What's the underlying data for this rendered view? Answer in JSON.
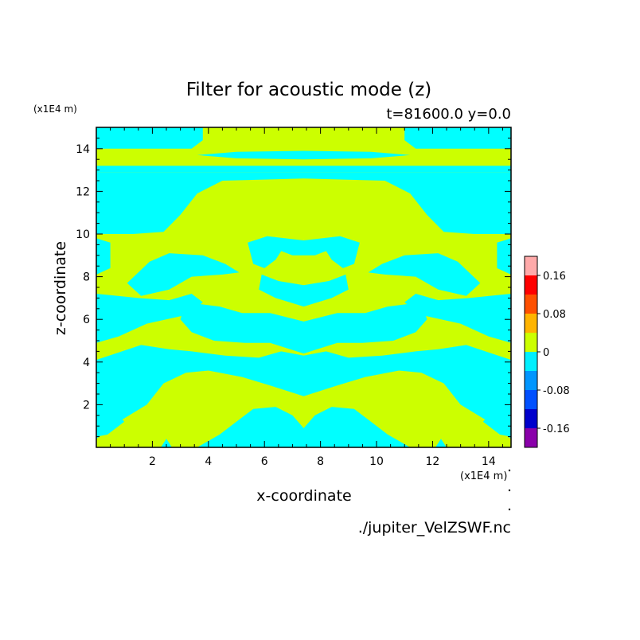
{
  "chart_data": {
    "type": "heatmap",
    "title": "Filter for acoustic mode (z)",
    "subtitle": "t=81600.0 y=0.0",
    "xlabel": "x-coordinate",
    "ylabel": "z-coordinate",
    "x_unit": "(x1E4 m)",
    "y_unit": "(x1E4 m)",
    "xlim": [
      0,
      14.8
    ],
    "ylim": [
      0,
      15
    ],
    "x_ticks": [
      2,
      4,
      6,
      8,
      10,
      12,
      14
    ],
    "y_ticks": [
      2,
      4,
      6,
      8,
      10,
      12,
      14
    ],
    "source_file": "./jupiter_VelZSWF.nc",
    "colorbar": {
      "levels": [
        -0.2,
        -0.16,
        -0.12,
        -0.08,
        -0.04,
        0,
        0.04,
        0.08,
        0.12,
        0.16,
        0.2
      ],
      "colors": [
        "#8a00aa",
        "#0000cc",
        "#0050ff",
        "#0096ff",
        "#00f0ff",
        "#ccff00",
        "#ffb400",
        "#ff5000",
        "#ff0000",
        "#ffaaaa"
      ],
      "tick_labels": [
        "0.16",
        "0.08",
        "0",
        "-0.08",
        "-0.16"
      ],
      "tick_values": [
        0.16,
        0.08,
        0,
        -0.08,
        -0.16
      ]
    },
    "field_colors": {
      "negative_band": "#00ffff",
      "positive_band": "#ccff00"
    },
    "negative_regions": [
      [
        [
          0,
          15
        ],
        [
          3.8,
          15
        ],
        [
          3.8,
          14.4
        ],
        [
          3.4,
          14.0
        ],
        [
          0,
          14.0
        ]
      ],
      [
        [
          11.0,
          15
        ],
        [
          14.8,
          15
        ],
        [
          14.8,
          14.0
        ],
        [
          11.4,
          14.0
        ],
        [
          11.0,
          14.4
        ]
      ],
      [
        [
          3.6,
          13.7
        ],
        [
          5.0,
          13.55
        ],
        [
          7.4,
          13.5
        ],
        [
          9.8,
          13.55
        ],
        [
          11.2,
          13.7
        ],
        [
          9.8,
          13.85
        ],
        [
          7.4,
          13.9
        ],
        [
          5.0,
          13.85
        ]
      ],
      [
        [
          0,
          13.2
        ],
        [
          14.8,
          13.2
        ],
        [
          14.8,
          12.9
        ],
        [
          0,
          12.9
        ]
      ],
      [
        [
          0,
          12.9
        ],
        [
          14.8,
          12.9
        ],
        [
          14.8,
          10.0
        ],
        [
          13.5,
          10.0
        ],
        [
          12.4,
          10.1
        ],
        [
          11.8,
          10.9
        ],
        [
          11.2,
          11.9
        ],
        [
          10.3,
          12.5
        ],
        [
          7.4,
          12.6
        ],
        [
          4.5,
          12.5
        ],
        [
          3.6,
          11.9
        ],
        [
          3.0,
          10.9
        ],
        [
          2.4,
          10.1
        ],
        [
          1.3,
          10.0
        ],
        [
          0,
          10.0
        ]
      ],
      [
        [
          1.9,
          8.7
        ],
        [
          2.6,
          9.1
        ],
        [
          3.8,
          9.0
        ],
        [
          4.6,
          8.6
        ],
        [
          5.1,
          8.2
        ],
        [
          4.5,
          8.1
        ],
        [
          3.4,
          8.0
        ],
        [
          2.6,
          7.4
        ],
        [
          1.6,
          7.1
        ],
        [
          1.1,
          7.7
        ]
      ],
      [
        [
          12.9,
          8.7
        ],
        [
          12.2,
          9.1
        ],
        [
          11.0,
          9.0
        ],
        [
          10.2,
          8.6
        ],
        [
          9.7,
          8.2
        ],
        [
          10.3,
          8.1
        ],
        [
          11.4,
          8.0
        ],
        [
          12.2,
          7.4
        ],
        [
          13.2,
          7.1
        ],
        [
          13.7,
          7.7
        ]
      ],
      [
        [
          6.1,
          9.9
        ],
        [
          7.4,
          9.7
        ],
        [
          8.7,
          9.9
        ],
        [
          9.4,
          9.6
        ],
        [
          9.2,
          8.6
        ],
        [
          8.8,
          8.4
        ],
        [
          8.4,
          8.8
        ],
        [
          8.2,
          9.2
        ],
        [
          7.8,
          9.0
        ],
        [
          7.0,
          9.0
        ],
        [
          6.6,
          9.2
        ],
        [
          6.4,
          8.8
        ],
        [
          6.0,
          8.4
        ],
        [
          5.6,
          8.6
        ],
        [
          5.4,
          9.6
        ]
      ],
      [
        [
          5.9,
          8.1
        ],
        [
          6.5,
          7.8
        ],
        [
          7.4,
          7.6
        ],
        [
          8.3,
          7.8
        ],
        [
          8.9,
          8.1
        ],
        [
          9.0,
          7.4
        ],
        [
          8.4,
          7.0
        ],
        [
          7.4,
          6.6
        ],
        [
          6.4,
          7.0
        ],
        [
          5.8,
          7.4
        ]
      ],
      [
        [
          0,
          8.1
        ],
        [
          0.5,
          8.4
        ],
        [
          0.5,
          9.6
        ],
        [
          0,
          9.8
        ]
      ],
      [
        [
          14.8,
          8.1
        ],
        [
          14.3,
          8.4
        ],
        [
          14.3,
          9.6
        ],
        [
          14.8,
          9.8
        ]
      ],
      [
        [
          0,
          7.2
        ],
        [
          1.5,
          7.0
        ],
        [
          2.6,
          6.9
        ],
        [
          3.4,
          7.2
        ],
        [
          3.8,
          6.8
        ],
        [
          3.2,
          6.2
        ],
        [
          1.8,
          5.8
        ],
        [
          0.8,
          5.2
        ],
        [
          0,
          4.9
        ]
      ],
      [
        [
          14.8,
          7.2
        ],
        [
          13.3,
          7.0
        ],
        [
          12.2,
          6.9
        ],
        [
          11.4,
          7.2
        ],
        [
          11.0,
          6.8
        ],
        [
          11.6,
          6.2
        ],
        [
          13.0,
          5.8
        ],
        [
          14.0,
          5.2
        ],
        [
          14.8,
          4.9
        ]
      ],
      [
        [
          3.2,
          6.8
        ],
        [
          4.4,
          6.6
        ],
        [
          5.2,
          6.3
        ],
        [
          6.2,
          6.3
        ],
        [
          7.4,
          5.9
        ],
        [
          8.6,
          6.3
        ],
        [
          9.6,
          6.3
        ],
        [
          10.4,
          6.6
        ],
        [
          11.6,
          6.8
        ],
        [
          11.8,
          6.0
        ],
        [
          11.4,
          5.4
        ],
        [
          10.6,
          5.0
        ],
        [
          9.5,
          4.9
        ],
        [
          8.6,
          4.9
        ],
        [
          7.4,
          4.4
        ],
        [
          6.2,
          4.9
        ],
        [
          5.3,
          4.9
        ],
        [
          4.2,
          5.0
        ],
        [
          3.4,
          5.4
        ],
        [
          3.0,
          6.0
        ]
      ],
      [
        [
          1.6,
          4.8
        ],
        [
          2.6,
          4.6
        ],
        [
          3.4,
          4.5
        ],
        [
          4.6,
          4.3
        ],
        [
          5.8,
          4.2
        ],
        [
          6.6,
          4.5
        ],
        [
          7.4,
          4.3
        ],
        [
          8.2,
          4.5
        ],
        [
          9.0,
          4.2
        ],
        [
          10.2,
          4.3
        ],
        [
          11.4,
          4.5
        ],
        [
          12.2,
          4.6
        ],
        [
          13.2,
          4.8
        ],
        [
          14.8,
          4.1
        ],
        [
          14.8,
          0.4
        ],
        [
          14.0,
          1.2
        ],
        [
          13.0,
          2.0
        ],
        [
          12.4,
          3.0
        ],
        [
          11.6,
          3.5
        ],
        [
          10.8,
          3.6
        ],
        [
          9.6,
          3.3
        ],
        [
          8.6,
          2.9
        ],
        [
          7.4,
          2.4
        ],
        [
          6.2,
          2.9
        ],
        [
          5.2,
          3.3
        ],
        [
          4.0,
          3.6
        ],
        [
          3.2,
          3.5
        ],
        [
          2.4,
          3.0
        ],
        [
          1.8,
          2.0
        ],
        [
          0.8,
          1.2
        ],
        [
          0,
          0.4
        ],
        [
          0,
          4.1
        ]
      ],
      [
        [
          3.6,
          0
        ],
        [
          4.4,
          0.6
        ],
        [
          5.0,
          1.2
        ],
        [
          5.6,
          1.8
        ],
        [
          6.4,
          1.9
        ],
        [
          7.0,
          1.5
        ],
        [
          7.4,
          0.9
        ],
        [
          7.8,
          1.5
        ],
        [
          8.4,
          1.9
        ],
        [
          9.2,
          1.8
        ],
        [
          9.8,
          1.2
        ],
        [
          10.4,
          0.6
        ],
        [
          11.2,
          0
        ]
      ],
      [
        [
          0,
          2.2
        ],
        [
          0.6,
          1.8
        ],
        [
          1.0,
          1.2
        ],
        [
          0.4,
          0.6
        ],
        [
          0,
          0.5
        ]
      ],
      [
        [
          14.8,
          2.2
        ],
        [
          14.2,
          1.8
        ],
        [
          13.8,
          1.2
        ],
        [
          14.4,
          0.6
        ],
        [
          14.8,
          0.5
        ]
      ],
      [
        [
          2.3,
          0
        ],
        [
          2.5,
          0.4
        ],
        [
          2.7,
          0
        ]
      ],
      [
        [
          12.1,
          0
        ],
        [
          12.3,
          0.4
        ],
        [
          12.5,
          0
        ]
      ]
    ]
  }
}
